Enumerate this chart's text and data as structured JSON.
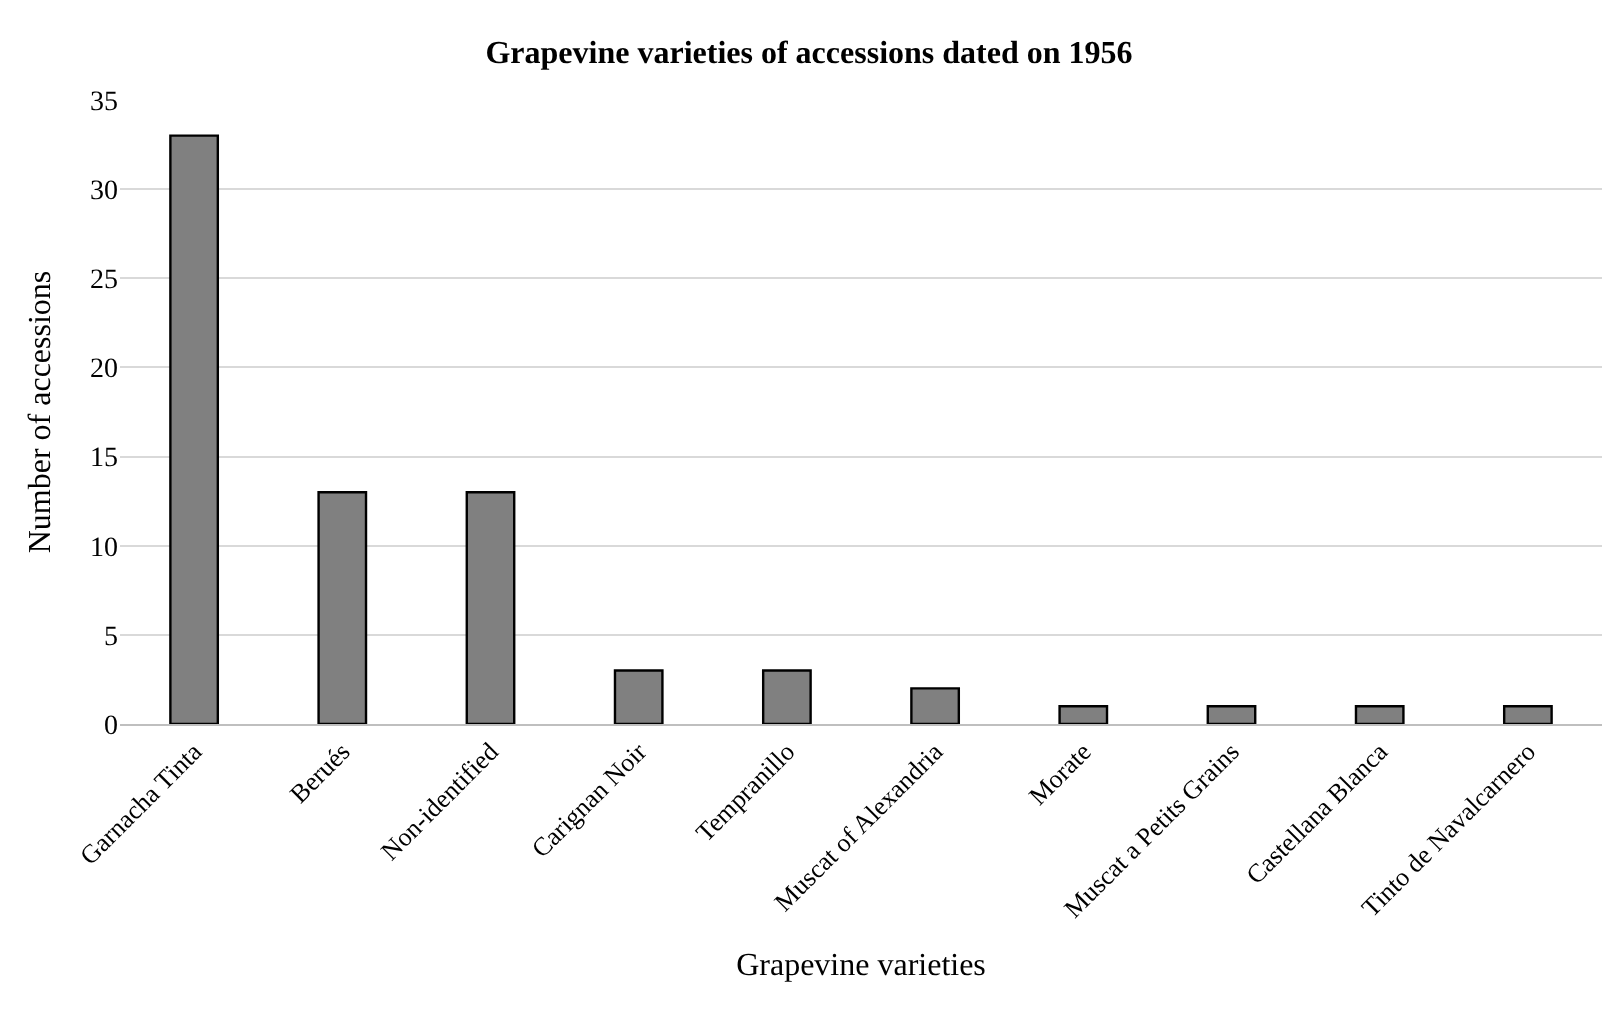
{
  "chart_data": {
    "type": "bar",
    "title": "Grapevine varieties of accessions dated on 1956",
    "xlabel": "Grapevine varieties",
    "ylabel": "Number of accessions",
    "categories": [
      "Garnacha Tinta",
      "Berués",
      "Non-identified",
      "Carignan Noir",
      "Tempranillo",
      "Muscat of Alexandria",
      "Morate",
      "Muscat a Petits Grains",
      "Castellana Blanca",
      "Tinto de Navalcarnero"
    ],
    "values": [
      33,
      13,
      13,
      3,
      3,
      2,
      1,
      1,
      1,
      1
    ],
    "color": "#808080",
    "ylim": [
      0,
      35
    ],
    "yticks": [
      0,
      5,
      10,
      15,
      20,
      25,
      30,
      35
    ],
    "grid": "y"
  }
}
